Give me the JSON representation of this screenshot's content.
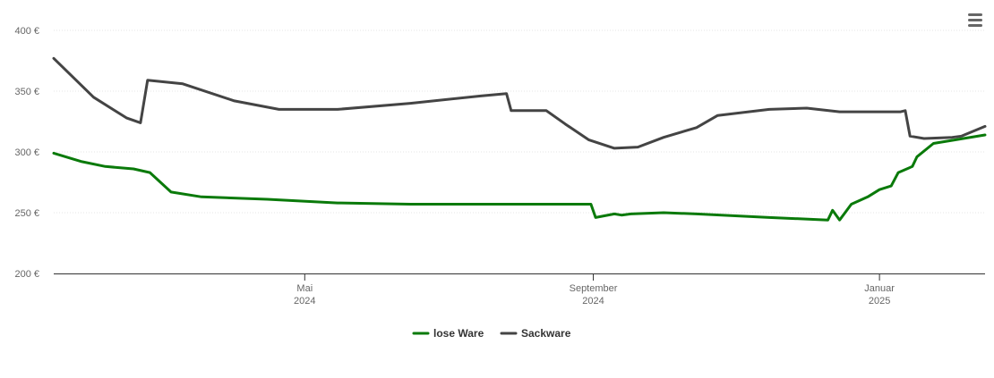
{
  "menu": {
    "icon": "hamburger-menu-icon"
  },
  "chart_data": {
    "type": "line",
    "title": "",
    "xlabel": "",
    "ylabel": "",
    "x_axis": "date",
    "xlim": [
      "2024-01-15",
      "2025-02-15"
    ],
    "ylim": [
      200,
      400
    ],
    "y_ticks": [
      {
        "value": 200,
        "label": "200 €"
      },
      {
        "value": 250,
        "label": "250 €"
      },
      {
        "value": 300,
        "label": "300 €"
      },
      {
        "value": 350,
        "label": "350 €"
      },
      {
        "value": 400,
        "label": "400 €"
      }
    ],
    "x_ticks": [
      {
        "date": "2024-05-01",
        "month": "Mai",
        "year": "2024"
      },
      {
        "date": "2024-09-01",
        "month": "September",
        "year": "2024"
      },
      {
        "date": "2025-01-01",
        "month": "Januar",
        "year": "2025"
      }
    ],
    "grid": true,
    "legend_position": "bottom-center",
    "series": [
      {
        "name": "lose Ware",
        "color": "#0a7a0a",
        "points": [
          [
            "2024-01-15",
            299
          ],
          [
            "2024-01-27",
            292
          ],
          [
            "2024-02-06",
            288
          ],
          [
            "2024-02-18",
            286
          ],
          [
            "2024-02-25",
            283
          ],
          [
            "2024-03-05",
            267
          ],
          [
            "2024-03-18",
            263
          ],
          [
            "2024-04-15",
            261
          ],
          [
            "2024-05-15",
            258
          ],
          [
            "2024-06-15",
            257
          ],
          [
            "2024-08-31",
            257
          ],
          [
            "2024-09-02",
            246
          ],
          [
            "2024-09-10",
            249
          ],
          [
            "2024-09-13",
            248
          ],
          [
            "2024-09-17",
            249
          ],
          [
            "2024-10-01",
            250
          ],
          [
            "2024-10-15",
            249
          ],
          [
            "2024-11-15",
            246
          ],
          [
            "2024-12-15",
            244
          ],
          [
            "2024-12-10",
            244
          ],
          [
            "2024-12-12",
            252
          ],
          [
            "2024-12-20",
            257
          ],
          [
            "2024-12-27",
            263
          ],
          [
            "2025-01-01",
            269
          ],
          [
            "2025-01-06",
            272
          ],
          [
            "2025-01-09",
            283
          ],
          [
            "2025-01-15",
            288
          ],
          [
            "2025-01-17",
            296
          ],
          [
            "2025-01-24",
            307
          ],
          [
            "2025-02-15",
            314
          ]
        ]
      },
      {
        "name": "Sackware",
        "color": "#444444",
        "points": [
          [
            "2024-01-15",
            377
          ],
          [
            "2024-02-01",
            345
          ],
          [
            "2024-02-15",
            328
          ],
          [
            "2024-02-21",
            324
          ],
          [
            "2024-02-24",
            359
          ],
          [
            "2024-03-10",
            356
          ],
          [
            "2024-04-01",
            342
          ],
          [
            "2024-04-20",
            335
          ],
          [
            "2024-05-15",
            335
          ],
          [
            "2024-06-15",
            340
          ],
          [
            "2024-07-15",
            346
          ],
          [
            "2024-07-26",
            348
          ],
          [
            "2024-07-28",
            334
          ],
          [
            "2024-08-01",
            334
          ],
          [
            "2024-08-12",
            334
          ],
          [
            "2024-08-20",
            323
          ],
          [
            "2024-08-30",
            310
          ],
          [
            "2024-09-10",
            303
          ],
          [
            "2024-09-20",
            304
          ],
          [
            "2024-10-01",
            312
          ],
          [
            "2024-10-15",
            320
          ],
          [
            "2024-10-24",
            330
          ],
          [
            "2024-11-15",
            335
          ],
          [
            "2024-12-01",
            336
          ],
          [
            "2024-12-15",
            333
          ],
          [
            "2025-01-10",
            333
          ],
          [
            "2025-01-12",
            334
          ],
          [
            "2025-01-14",
            313
          ],
          [
            "2025-01-20",
            311
          ],
          [
            "2025-02-01",
            312
          ],
          [
            "2025-02-05",
            313
          ],
          [
            "2025-02-15",
            321
          ]
        ]
      }
    ]
  }
}
